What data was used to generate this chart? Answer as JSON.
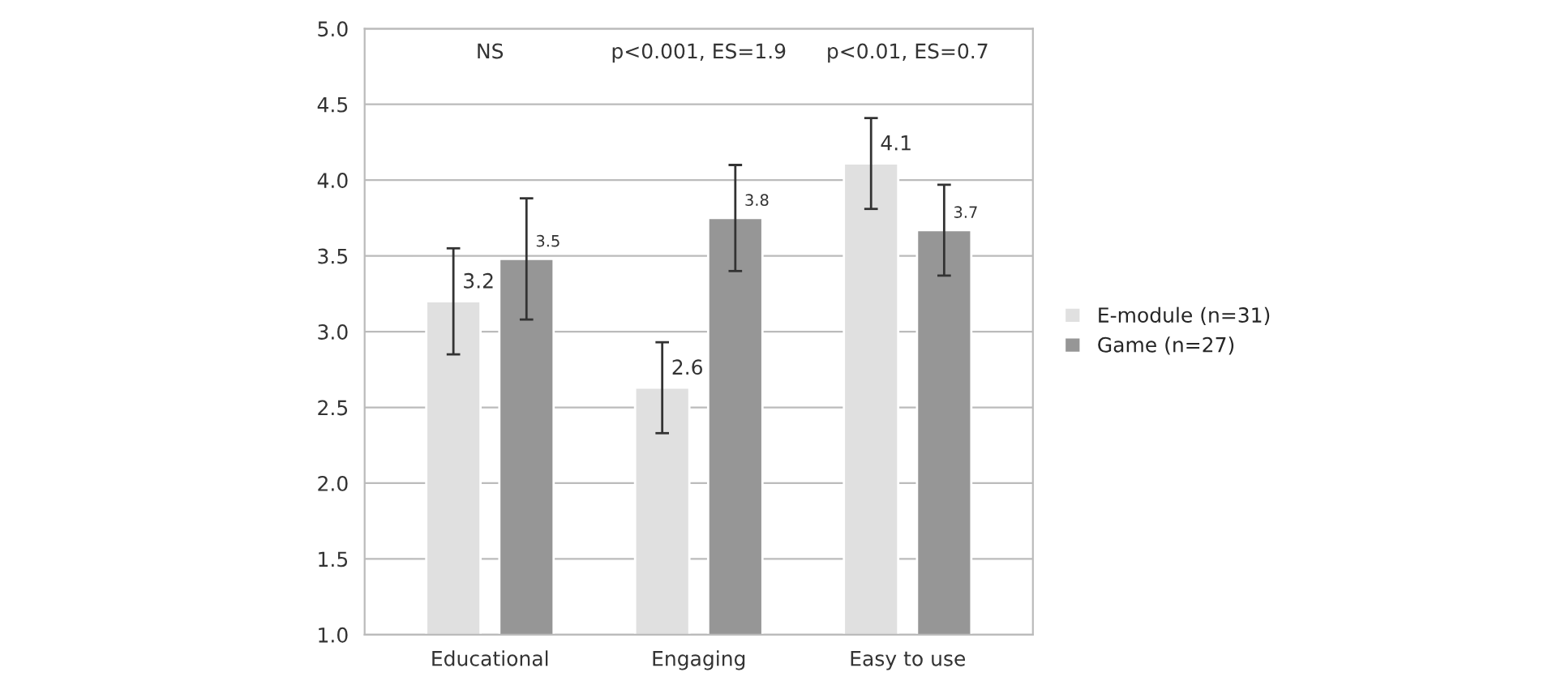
{
  "chart_data": {
    "type": "bar",
    "categories": [
      "Educational",
      "Engaging",
      "Easy to use"
    ],
    "series": [
      {
        "name": "E-module (n=31)",
        "color": "#e0e0e0",
        "values": [
          3.2,
          2.63,
          4.11
        ],
        "errors": [
          [
            2.85,
            3.55
          ],
          [
            2.33,
            2.93
          ],
          [
            3.81,
            4.41
          ]
        ],
        "value_labels": [
          "3.2",
          "2.6",
          "4.1"
        ]
      },
      {
        "name": "Game (n=27)",
        "color": "#969696",
        "values": [
          3.48,
          3.75,
          3.67
        ],
        "errors": [
          [
            3.08,
            3.88
          ],
          [
            3.4,
            4.1
          ],
          [
            3.37,
            3.97
          ]
        ],
        "value_labels": [
          "3.5",
          "3.8",
          "3.7"
        ]
      }
    ],
    "ylim": [
      1.0,
      5.0
    ],
    "yticks": [
      {
        "value": 1.0,
        "label": "1.0"
      },
      {
        "value": 1.5,
        "label": "1.5"
      },
      {
        "value": 2.0,
        "label": "2.0"
      },
      {
        "value": 2.5,
        "label": "2.5"
      },
      {
        "value": 3.0,
        "label": "3.0"
      },
      {
        "value": 3.5,
        "label": "3.5"
      },
      {
        "value": 4.0,
        "label": "4.0"
      },
      {
        "value": 4.5,
        "label": "4.5"
      },
      {
        "value": 5.0,
        "label": "5.0"
      }
    ],
    "annotations": [
      "NS",
      "p<0.001, ES=1.9",
      "p<0.01, ES=0.7"
    ],
    "grid": "y",
    "legend": "right"
  }
}
